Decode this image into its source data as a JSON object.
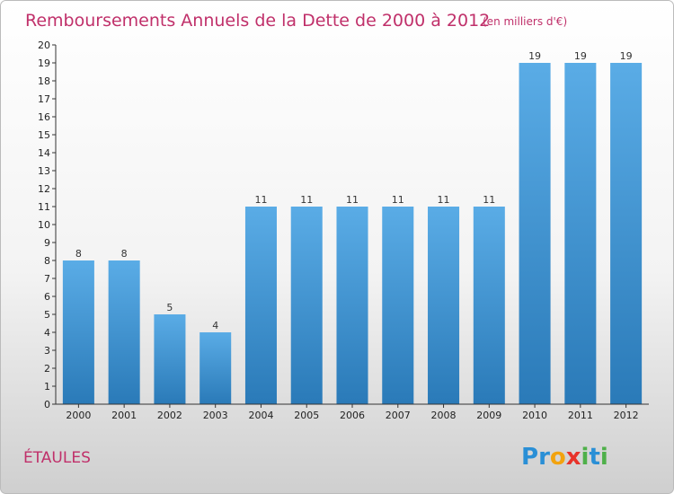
{
  "chart_data": {
    "type": "bar",
    "title": "Remboursements Annuels de la Dette de 2000 à 2012",
    "subtitle": "(en milliers d'€)",
    "categories": [
      "2000",
      "2001",
      "2002",
      "2003",
      "2004",
      "2005",
      "2006",
      "2007",
      "2008",
      "2009",
      "2010",
      "2011",
      "2012"
    ],
    "values": [
      8,
      8,
      5,
      4,
      11,
      11,
      11,
      11,
      11,
      11,
      19,
      19,
      19
    ],
    "ylim": [
      0,
      20
    ],
    "yticks": [
      0,
      1,
      2,
      3,
      4,
      5,
      6,
      7,
      8,
      9,
      10,
      11,
      12,
      13,
      14,
      15,
      16,
      17,
      18,
      19,
      20
    ],
    "grid": false,
    "bar_color_top": "#5aace6",
    "bar_color_bottom": "#2a7ab8"
  },
  "footer": {
    "commune": "ÉTAULES",
    "logo_letters": [
      "P",
      "r",
      "o",
      "x",
      "i",
      "t",
      "i"
    ],
    "logo_colors": [
      "#2a8fd6",
      "#2a8fd6",
      "#f2a30f",
      "#e8332a",
      "#4fb04a",
      "#2a8fd6",
      "#4fb04a"
    ]
  }
}
